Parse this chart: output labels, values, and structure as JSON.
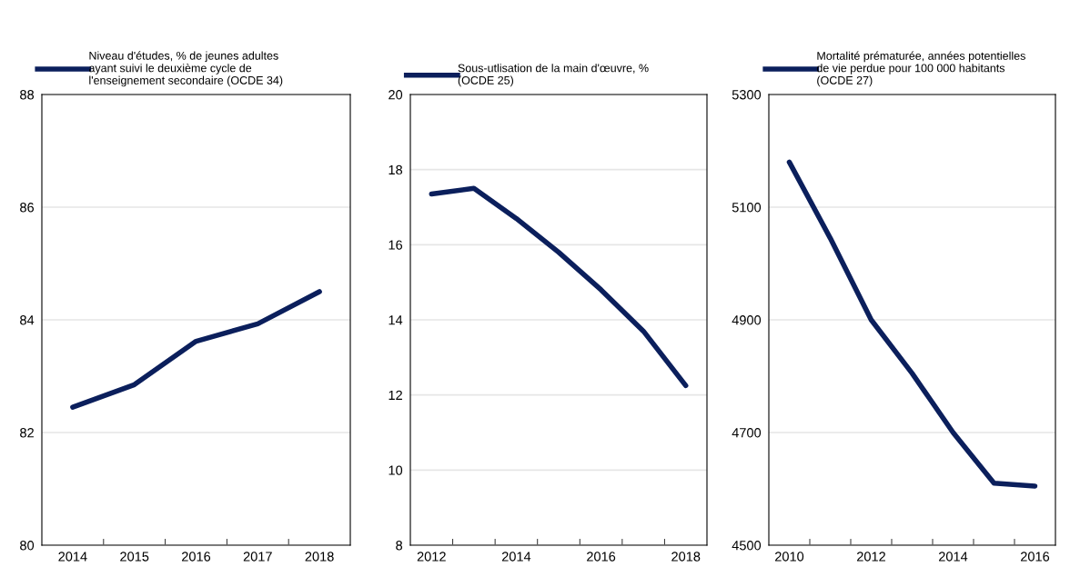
{
  "chart_data": [
    {
      "type": "line",
      "categories": [
        "2014",
        "2015",
        "2016",
        "2017",
        "2018"
      ],
      "ylim": [
        80,
        88
      ],
      "yticks": [
        80,
        82,
        84,
        86,
        88
      ],
      "grid": "y",
      "legend": "top left",
      "series": [
        {
          "name": "Niveau d'études, % de jeunes adultes\nayant suivi le deuxième cycle de\nl'enseignement secondaire (OCDE 34)",
          "color": "#0b1f5c",
          "values": [
            82.45,
            82.85,
            83.62,
            83.93,
            84.5
          ]
        }
      ]
    },
    {
      "type": "line",
      "categories": [
        "2012",
        null,
        "2014",
        null,
        "2016",
        null,
        "2018"
      ],
      "ylim": [
        8,
        20
      ],
      "yticks": [
        8,
        10,
        12,
        14,
        16,
        18,
        20
      ],
      "grid": "y",
      "legend": "top left",
      "series": [
        {
          "name": "Sous-utlisation de la main d'œuvre, %\n(OCDE 25)",
          "color": "#0b1f5c",
          "values": [
            17.35,
            17.5,
            16.7,
            15.8,
            14.8,
            13.7,
            12.25
          ]
        }
      ]
    },
    {
      "type": "line",
      "categories": [
        "2010",
        null,
        "2012",
        null,
        "2014",
        null,
        "2016"
      ],
      "ylim": [
        4500,
        5300
      ],
      "yticks": [
        4500,
        4700,
        4900,
        5100,
        5300
      ],
      "grid": "y",
      "legend": "top left",
      "series": [
        {
          "name": "Mortalité prématurée, années potentielles\nde vie perdue pour 100 000 habitants\n(OCDE 27)",
          "color": "#0b1f5c",
          "values": [
            5180,
            5045,
            4900,
            4805,
            4700,
            4610,
            4605
          ]
        }
      ]
    }
  ]
}
